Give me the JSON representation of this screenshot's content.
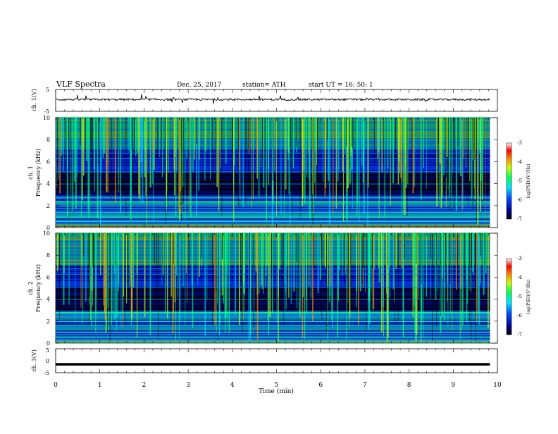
{
  "header": {
    "title": "VLF  Spectra",
    "date": "Dec. 25,  2017",
    "station": "station= ATH",
    "start": "start  UT  =    16: 50: 1"
  },
  "chart_data": [
    {
      "type": "line",
      "ylabel": "ch. 1(V)",
      "ylim": [
        -5,
        5
      ],
      "yticks": [
        "5",
        "-5"
      ],
      "note": "noisy waveform near 0.4 V with sporadic spikes"
    },
    {
      "type": "heatmap",
      "ylabel_top": "ch. 1",
      "ylabel": "Frequency  (kHz)",
      "ylim": [
        0,
        10
      ],
      "yticks": [
        "0",
        "2",
        "4",
        "6",
        "8",
        "10"
      ],
      "colorbar": {
        "label": "log(PSD)(V²/Hz)",
        "ticks": [
          "-3",
          "-4",
          "-5",
          "-6",
          "-7"
        ],
        "range": [
          -7,
          -3
        ]
      }
    },
    {
      "type": "heatmap",
      "ylabel_top": "ch. 2",
      "ylabel": "Frequency  (kHz)",
      "ylim": [
        0,
        10
      ],
      "yticks": [
        "0",
        "2",
        "4",
        "6",
        "8",
        "10"
      ],
      "colorbar": {
        "label": "log(PSD)(V²/Hz)",
        "ticks": [
          "-3",
          "-4",
          "-5",
          "-6",
          "-7"
        ],
        "range": [
          -7,
          -3
        ]
      }
    },
    {
      "type": "line",
      "ylabel": "ch. 3(V)",
      "ylim": [
        -5,
        5
      ],
      "yticks": [
        "5",
        "0",
        "-5"
      ],
      "note": "flat trace at about -1.5 V"
    }
  ],
  "xaxis": {
    "label": "Time  (min)",
    "xlim": [
      0,
      10
    ],
    "ticks": [
      "0",
      "1",
      "2",
      "3",
      "4",
      "5",
      "6",
      "7",
      "8",
      "9",
      "10"
    ],
    "data_end": 9.83
  },
  "colors": {
    "background": "#000060",
    "spectrum_low": "#000000",
    "spectrum_mid": "#0028ff",
    "spectrum_high": "#00ff80",
    "peak": "#ff0000",
    "axes": "#000000"
  }
}
